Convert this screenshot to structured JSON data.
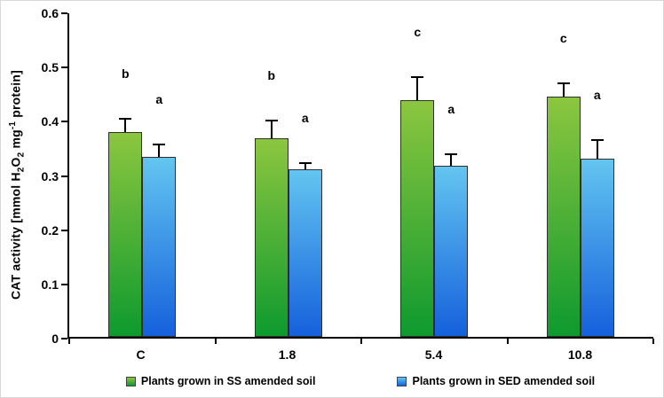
{
  "chart_data": {
    "type": "bar",
    "title": "",
    "xlabel": "",
    "ylabel": "CAT activity [mmol H2O2 mg-1 protein]",
    "ylabel_parts": {
      "p1": "CAT activity [mmol H",
      "s1": "2",
      "p2": "O",
      "s2": "2",
      "p3": " mg",
      "sup1": "-1",
      "p4": " protein]"
    },
    "ylim": [
      0,
      0.6
    ],
    "yticks": [
      "0",
      "0.1",
      "0.2",
      "0.3",
      "0.4",
      "0.5",
      "0.6"
    ],
    "categories": [
      "C",
      "1.8",
      "5.4",
      "10.8"
    ],
    "grid": false,
    "legend_position": "bottom",
    "series": [
      {
        "name": "Plants grown in SS amended soil",
        "color_top": "#8CC63F",
        "color_bottom": "#0E9A2E",
        "values": [
          0.378,
          0.366,
          0.437,
          0.443
        ],
        "errors_plus": [
          0.023,
          0.032,
          0.04,
          0.023
        ],
        "letters": [
          "b",
          "b",
          "c",
          "c"
        ]
      },
      {
        "name": "Plants grown in SED amended soil",
        "color_top": "#63C5F0",
        "color_bottom": "#1560DC",
        "values": [
          0.332,
          0.309,
          0.316,
          0.328
        ],
        "errors_plus": [
          0.021,
          0.01,
          0.019,
          0.033
        ],
        "letters": [
          "a",
          "a",
          "a",
          "a"
        ]
      }
    ]
  }
}
